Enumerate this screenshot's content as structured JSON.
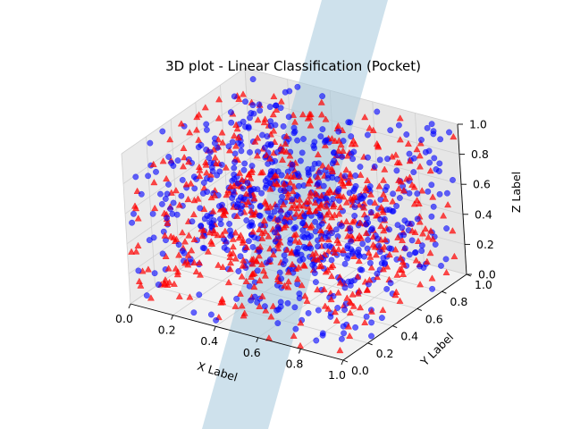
{
  "chart_data": {
    "type": "scatter",
    "projection": "3d",
    "title": "3D plot - Linear Classification (Pocket)",
    "xlabel": "X Label",
    "ylabel": "Y Label",
    "zlabel": "Z Label",
    "xlim": [
      0,
      1
    ],
    "ylim": [
      0,
      1
    ],
    "zlim": [
      0,
      1
    ],
    "x_ticks": [
      "0.0",
      "0.2",
      "0.4",
      "0.6",
      "0.8",
      "1.0"
    ],
    "y_ticks": [
      "0.0",
      "0.2",
      "0.4",
      "0.6",
      "0.8",
      "1.0"
    ],
    "z_ticks": [
      "0.0",
      "0.2",
      "0.4",
      "0.6",
      "0.8",
      "1.0"
    ],
    "grid": true,
    "point_count_per_series": 650,
    "series": [
      {
        "marker": "triangle",
        "color": "#ff0000",
        "alpha": 0.7
      },
      {
        "marker": "circle",
        "color": "#0000ff",
        "alpha": 0.6
      }
    ],
    "separating_plane": {
      "color": "#a6c8dd",
      "alpha": 0.55
    }
  }
}
